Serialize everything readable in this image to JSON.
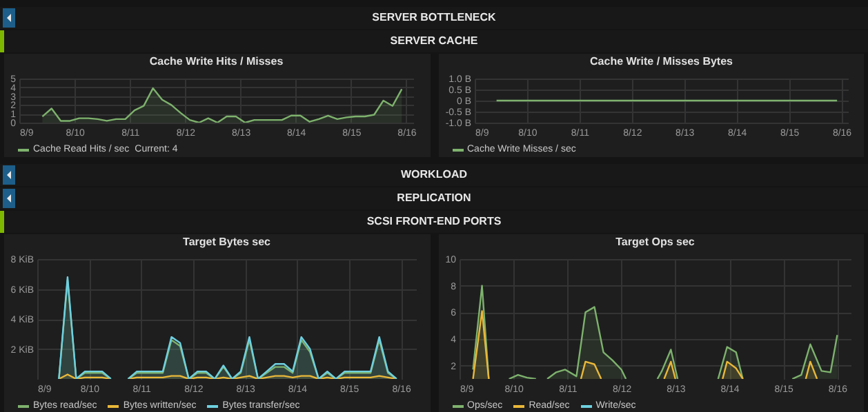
{
  "chart_data": [
    {
      "type": "other",
      "title": "SERVER BOTTLENECK"
    },
    {
      "type": "other",
      "title": "SERVER CACHE"
    },
    {
      "type": "area",
      "title": "Cache Write Hits / Misses",
      "xlim": [
        "--08-09",
        "--08-16T03:00"
      ],
      "xticks": [
        {
          "value": "--08-09",
          "label": "8/9"
        },
        {
          "value": "--08-10",
          "label": "8/10"
        },
        {
          "value": "--08-11",
          "label": "8/11"
        },
        {
          "value": "--08-12",
          "label": "8/12"
        },
        {
          "value": "--08-13",
          "label": "8/13"
        },
        {
          "value": "--08-14",
          "label": "8/14"
        },
        {
          "value": "--08-15",
          "label": "8/15"
        },
        {
          "value": "--08-16",
          "label": "8/16"
        }
      ],
      "ylim": [
        0,
        5
      ],
      "yticks": [
        0,
        1,
        2,
        3,
        4,
        5
      ],
      "grid": true,
      "legend": "bottom",
      "annotations": [
        "Current: 4"
      ],
      "x": [
        "--08-09T10:00",
        "--08-09T14:00",
        "--08-09T18:00",
        "--08-09T22:00",
        "--08-10T02:00",
        "--08-10T06:00",
        "--08-10T10:00",
        "--08-10T14:00",
        "--08-10T18:00",
        "--08-10T22:00",
        "--08-11T02:00",
        "--08-11T06:00",
        "--08-11T10:00",
        "--08-11T14:00",
        "--08-11T18:00",
        "--08-11T22:00",
        "--08-12T02:00",
        "--08-12T06:00",
        "--08-12T10:00",
        "--08-12T14:00",
        "--08-12T18:00",
        "--08-12T22:00",
        "--08-13T02:00",
        "--08-13T06:00",
        "--08-13T10:00",
        "--08-13T14:00",
        "--08-13T18:00",
        "--08-13T22:00",
        "--08-14T02:00",
        "--08-14T06:00",
        "--08-14T10:00",
        "--08-14T14:00",
        "--08-14T18:00",
        "--08-14T22:00",
        "--08-15T02:00",
        "--08-15T06:00",
        "--08-15T10:00",
        "--08-15T14:00",
        "--08-15T18:00",
        "--08-15T22:00"
      ],
      "series": [
        {
          "name": "Cache Read Hits / sec",
          "color": "#7eb26d",
          "values": [
            0.7,
            1.6,
            0.2,
            0.2,
            0.5,
            0.5,
            0.4,
            0.2,
            0.4,
            0.4,
            1.4,
            1.9,
            3.9,
            2.6,
            2,
            1.1,
            0.3,
            0,
            0.5,
            0,
            0.7,
            0.7,
            0,
            0.3,
            0.3,
            0.3,
            0.3,
            0.8,
            0.8,
            0.1,
            0.4,
            0.8,
            0.4,
            0.6,
            0.7,
            0.7,
            0.9,
            2.5,
            1.9,
            3.8
          ]
        }
      ]
    },
    {
      "type": "line",
      "title": "Cache Write / Misses Bytes",
      "xlim": [
        "--08-09",
        "--08-16T03:00"
      ],
      "xticks": [
        {
          "value": "--08-09",
          "label": "8/9"
        },
        {
          "value": "--08-10",
          "label": "8/10"
        },
        {
          "value": "--08-11",
          "label": "8/11"
        },
        {
          "value": "--08-12",
          "label": "8/12"
        },
        {
          "value": "--08-13",
          "label": "8/13"
        },
        {
          "value": "--08-14",
          "label": "8/14"
        },
        {
          "value": "--08-15",
          "label": "8/15"
        },
        {
          "value": "--08-16",
          "label": "8/16"
        }
      ],
      "ylim": [
        -1,
        1
      ],
      "yticks": [
        {
          "value": -1,
          "label": "-1.0 B"
        },
        {
          "value": -0.5,
          "label": "-0.5 B"
        },
        {
          "value": 0,
          "label": "0 B"
        },
        {
          "value": 0.5,
          "label": "0.5 B"
        },
        {
          "value": 1,
          "label": "1.0 B"
        }
      ],
      "grid": true,
      "legend": "bottom",
      "x": [
        "--08-09T10:00",
        "--08-15T22:00"
      ],
      "series": [
        {
          "name": "Cache Write Misses / sec",
          "color": "#7eb26d",
          "values": [
            0,
            0
          ]
        }
      ]
    },
    {
      "type": "other",
      "title": "WORKLOAD"
    },
    {
      "type": "other",
      "title": "REPLICATION"
    },
    {
      "type": "other",
      "title": "SCSI FRONT-END PORTS"
    },
    {
      "type": "area",
      "title": "Target Bytes sec",
      "xlim": [
        "--08-09",
        "--08-16T07:00"
      ],
      "xticks": [
        {
          "value": "--08-09",
          "label": "8/9"
        },
        {
          "value": "--08-10",
          "label": "8/10"
        },
        {
          "value": "--08-11",
          "label": "8/11"
        },
        {
          "value": "--08-12",
          "label": "8/12"
        },
        {
          "value": "--08-13",
          "label": "8/13"
        },
        {
          "value": "--08-14",
          "label": "8/14"
        },
        {
          "value": "--08-15",
          "label": "8/15"
        },
        {
          "value": "--08-16",
          "label": "8/16"
        }
      ],
      "ylim": [
        0,
        8
      ],
      "yticks": [
        {
          "value": 2,
          "label": "2 KiB"
        },
        {
          "value": 4,
          "label": "4 KiB"
        },
        {
          "value": 6,
          "label": "6 KiB"
        },
        {
          "value": 8,
          "label": "8 KiB"
        }
      ],
      "grid": true,
      "legend": "bottom",
      "x": [
        "--08-09T10:00",
        "--08-09T14:00",
        "--08-09T18:00",
        "--08-09T22:00",
        "--08-10T02:00",
        "--08-10T06:00",
        "--08-10T10:00",
        "--08-10T14:00",
        "--08-10T18:00",
        "--08-10T22:00",
        "--08-11T02:00",
        "--08-11T06:00",
        "--08-11T10:00",
        "--08-11T14:00",
        "--08-11T18:00",
        "--08-11T22:00",
        "--08-12T02:00",
        "--08-12T06:00",
        "--08-12T10:00",
        "--08-12T14:00",
        "--08-12T18:00",
        "--08-12T22:00",
        "--08-13T02:00",
        "--08-13T06:00",
        "--08-13T10:00",
        "--08-13T14:00",
        "--08-13T18:00",
        "--08-13T22:00",
        "--08-14T02:00",
        "--08-14T06:00",
        "--08-14T10:00",
        "--08-14T14:00",
        "--08-14T18:00",
        "--08-14T22:00",
        "--08-15T02:00",
        "--08-15T06:00",
        "--08-15T10:00",
        "--08-15T14:00",
        "--08-15T18:00",
        "--08-15T22:00"
      ],
      "series": [
        {
          "name": "Bytes read/sec",
          "color": "#7eb26d",
          "values": [
            0,
            6.6,
            0,
            0.4,
            0.4,
            0.4,
            0,
            null,
            0,
            0.4,
            0.4,
            0.4,
            0.4,
            2.6,
            2.2,
            0,
            0.4,
            0.4,
            0,
            0.8,
            0,
            0.4,
            2.6,
            0,
            0.4,
            0.8,
            0.8,
            0.4,
            2.6,
            1.8,
            0,
            0.4,
            0,
            0.4,
            0.4,
            0.4,
            0.4,
            2.6,
            0.4,
            0
          ]
        },
        {
          "name": "Bytes written/sec",
          "color": "#eab839",
          "values": [
            0,
            0.3,
            0,
            0.1,
            0.1,
            0.1,
            0,
            null,
            0,
            0.1,
            0.1,
            0.1,
            0.1,
            0.2,
            0.2,
            0,
            0.1,
            0.1,
            0,
            0.1,
            0,
            0.1,
            0.2,
            0,
            0.1,
            0.2,
            0.2,
            0.1,
            0.2,
            0.2,
            0,
            0.1,
            0,
            0.1,
            0.1,
            0.1,
            0.1,
            0.2,
            0.1,
            0
          ]
        },
        {
          "name": "Bytes transfer/sec",
          "color": "#6ed0e0",
          "values": [
            0,
            6.8,
            0,
            0.5,
            0.5,
            0.5,
            0,
            null,
            0,
            0.5,
            0.5,
            0.5,
            0.5,
            2.8,
            2.4,
            0,
            0.5,
            0.5,
            0,
            0.9,
            0,
            0.5,
            2.8,
            0,
            0.5,
            1,
            1,
            0.5,
            2.8,
            2,
            0,
            0.5,
            0,
            0.5,
            0.5,
            0.5,
            0.5,
            2.8,
            0.5,
            0
          ]
        }
      ]
    },
    {
      "type": "area",
      "title": "Target Ops sec",
      "xlim": [
        "--08-09",
        "--08-16T06:00"
      ],
      "xticks": [
        {
          "value": "--08-09",
          "label": "8/9"
        },
        {
          "value": "--08-10",
          "label": "8/10"
        },
        {
          "value": "--08-11",
          "label": "8/11"
        },
        {
          "value": "--08-12",
          "label": "8/12"
        },
        {
          "value": "--08-13",
          "label": "8/13"
        },
        {
          "value": "--08-14",
          "label": "8/14"
        },
        {
          "value": "--08-15",
          "label": "8/15"
        },
        {
          "value": "--08-16",
          "label": "8/16"
        }
      ],
      "ylim": [
        1,
        10
      ],
      "yticks": [
        2,
        4,
        6,
        8,
        10
      ],
      "grid": true,
      "legend": "bottom",
      "series": [
        {
          "name": "Ops/sec",
          "color": "#7eb26d",
          "x": [
            "--08-09T06:00",
            "--08-09T10:00",
            "--08-09T13:00",
            "--08-09T18:00",
            "--08-09T22:00",
            "--08-10T02:00",
            "--08-10T06:00",
            "--08-10T10:00",
            "--08-10T12:00",
            "--08-10T15:00",
            "--08-10T19:00",
            "--08-10T23:00",
            "--08-11T04:00",
            "--08-11T08:00",
            "--08-11T12:00",
            "--08-11T16:00",
            "--08-11T20:00",
            "--08-12T00:00",
            "--08-12T02:00",
            "--08-12T10:00",
            "--08-12T16:00",
            "--08-12T18:00",
            "--08-12T22:00",
            "--08-13T01:00",
            "--08-13T10:00",
            "--08-13T19:00",
            "--08-13T23:00",
            "--08-14T03:00",
            "--08-14T06:00",
            "--08-14T17:00",
            "--08-15T04:00",
            "--08-15T08:00",
            "--08-15T12:00",
            "--08-15T17:00",
            "--08-15T21:00",
            "--08-16T00:00"
          ],
          "values": [
            1.7,
            8,
            1,
            null,
            1,
            1.3,
            1.1,
            1,
            null,
            1,
            1.5,
            1.7,
            1.2,
            6,
            6.4,
            3,
            2.4,
            1.7,
            1,
            null,
            1,
            1.6,
            3.2,
            1,
            null,
            1,
            3.4,
            3,
            1,
            null,
            1,
            1.3,
            3.6,
            1.6,
            1.5,
            4.3
          ]
        },
        {
          "name": "Read/sec",
          "color": "#eab839",
          "x": [
            "--08-09T06:00",
            "--08-09T10:00",
            "--08-09T13:00",
            "--08-10T10:00",
            "--08-11T06:00",
            "--08-11T08:00",
            "--08-11T12:00",
            "--08-11T15:00",
            "--08-12T05:00",
            "--08-12T19:00",
            "--08-12T22:00",
            "--08-13T00:00",
            "--08-13T10:00",
            "--08-13T21:00",
            "--08-13T23:00",
            "--08-14T03:00",
            "--08-14T06:00",
            "--08-14T19:00",
            "--08-15T10:00",
            "--08-15T12:00",
            "--08-15T15:00"
          ],
          "values": [
            1,
            6.1,
            1,
            null,
            1,
            2.3,
            2.1,
            1,
            null,
            1,
            2.3,
            1,
            null,
            1,
            2.3,
            1.8,
            1,
            null,
            1,
            2.3,
            1
          ]
        },
        {
          "name": "Write/sec",
          "color": "#6ed0e0"
        }
      ]
    }
  ]
}
